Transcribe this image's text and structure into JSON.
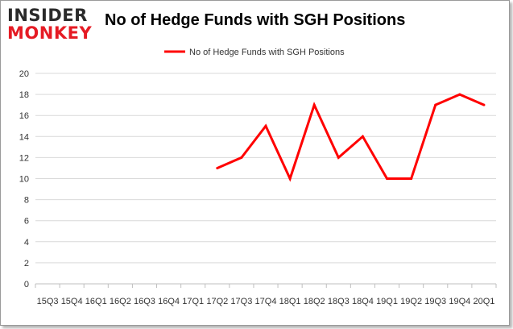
{
  "logo": {
    "line1": "INSIDER",
    "line2": "MONKEY"
  },
  "title": "No of Hedge Funds with SGH Positions",
  "colors": {
    "series": "#ff0000",
    "logo_dark": "#2a2a2a",
    "logo_accent": "#e51b24",
    "grid": "#d9d9d9"
  },
  "chart_data": {
    "type": "line",
    "title": "No of Hedge Funds with SGH Positions",
    "xlabel": "",
    "ylabel": "",
    "ylim": [
      0,
      20
    ],
    "yticks": [
      0,
      2,
      4,
      6,
      8,
      10,
      12,
      14,
      16,
      18,
      20
    ],
    "grid": true,
    "legend": "top-center",
    "categories": [
      "15Q3",
      "15Q4",
      "16Q1",
      "16Q2",
      "16Q3",
      "16Q4",
      "17Q1",
      "17Q2",
      "17Q3",
      "17Q4",
      "18Q1",
      "18Q2",
      "18Q3",
      "18Q4",
      "19Q1",
      "19Q2",
      "19Q3",
      "19Q4",
      "20Q1"
    ],
    "series": [
      {
        "name": "No of Hedge Funds with SGH Positions",
        "values": [
          null,
          null,
          null,
          null,
          null,
          null,
          null,
          11,
          12,
          15,
          10,
          17,
          12,
          14,
          10,
          10,
          17,
          18,
          17
        ]
      }
    ]
  }
}
